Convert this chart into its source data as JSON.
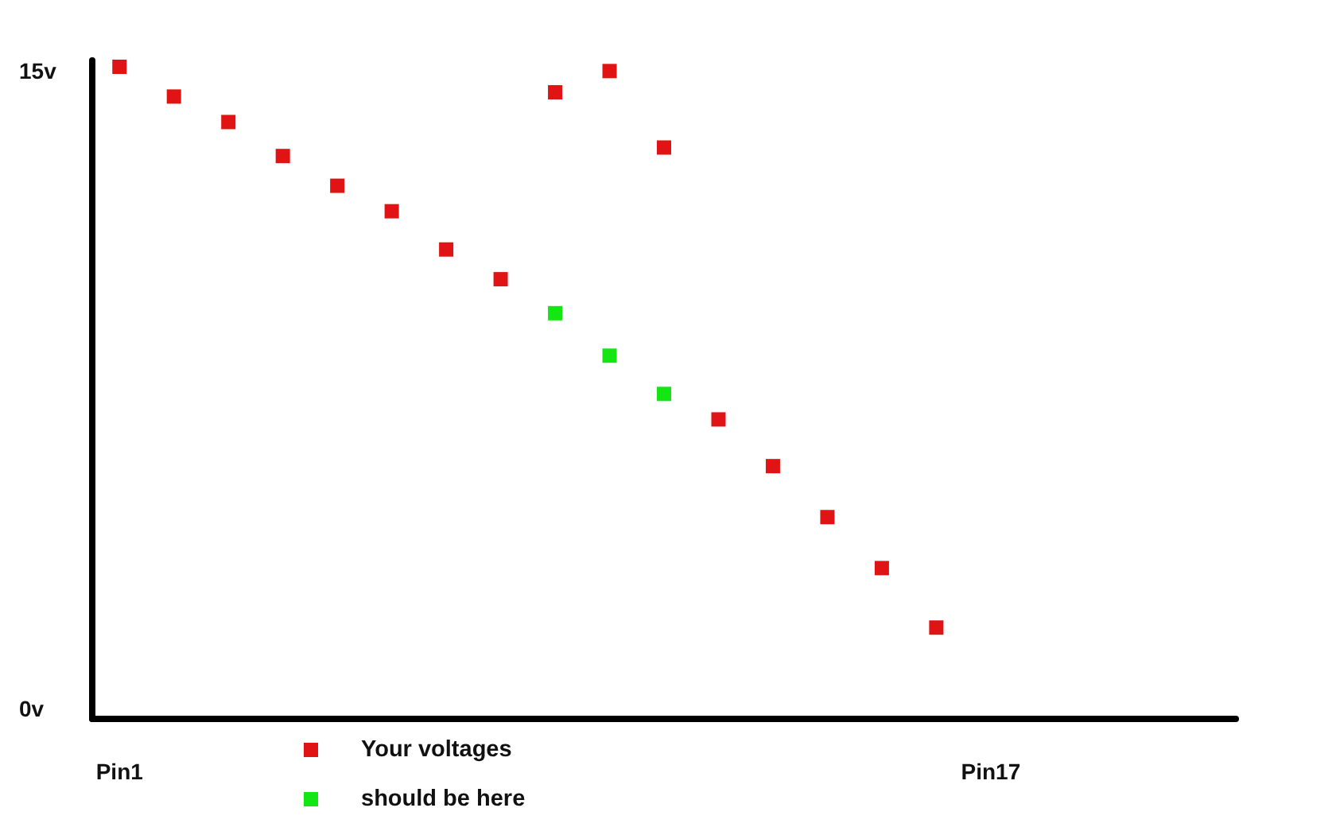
{
  "chart_data": {
    "type": "scatter",
    "categories": [
      "Pin1",
      null,
      null,
      null,
      null,
      null,
      null,
      null,
      null,
      null,
      null,
      null,
      null,
      null,
      null,
      null,
      "Pin17",
      null,
      null,
      null,
      null
    ],
    "ylim": [
      -0.25,
      15.25
    ],
    "yticks": [
      {
        "value": 0,
        "label": "0v"
      },
      {
        "value": 15,
        "label": "15v"
      }
    ],
    "legend": "bottom",
    "marker": "square",
    "series": [
      {
        "name": "Your voltages",
        "color": "#e01414",
        "values": [
          15.1,
          14.4,
          13.8,
          13.0,
          12.3,
          11.7,
          10.8,
          10.1,
          14.5,
          15.0,
          13.2,
          6.8,
          5.7,
          4.5,
          3.3,
          1.9,
          null,
          null,
          null,
          null,
          null
        ]
      },
      {
        "name": "should be here",
        "color": "#14e614",
        "values": [
          null,
          null,
          null,
          null,
          null,
          null,
          null,
          null,
          9.3,
          8.3,
          7.4,
          null,
          null,
          null,
          null,
          null,
          null,
          null,
          null,
          null,
          null
        ]
      }
    ]
  }
}
